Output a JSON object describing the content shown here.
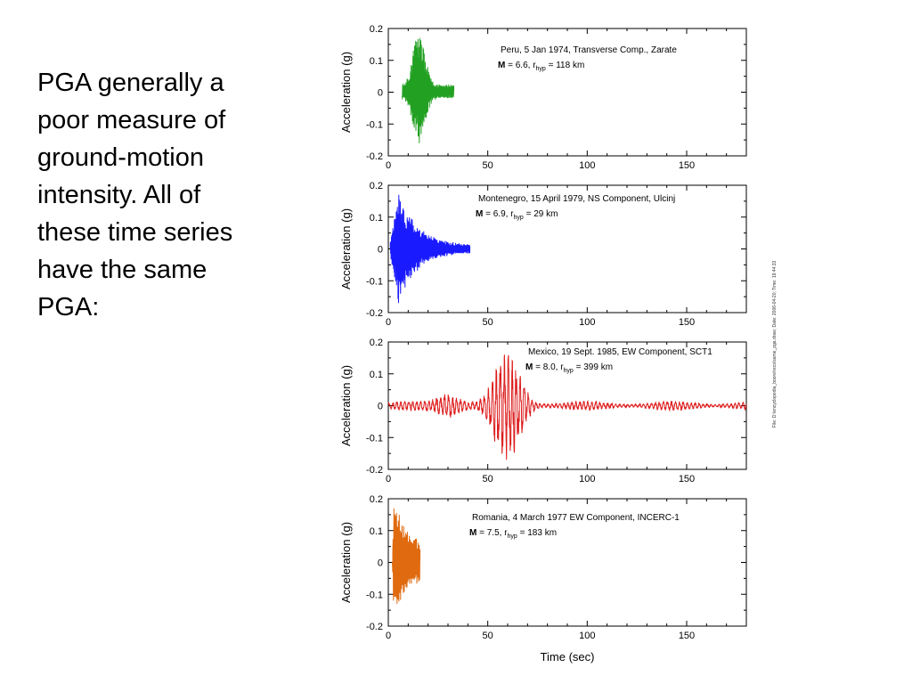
{
  "slide": {
    "lines": [
      "PGA generally a",
      "poor measure of",
      "ground-motion",
      "intensity.  All of",
      "these time series",
      "have the same",
      "PGA:"
    ]
  },
  "side_note": "File: D:\\encyclopedia_boore\\recs\\same_pga.draw; Date: 2006-04-20; Time: 19:44:33",
  "chart_data": [
    {
      "type": "line",
      "series": [
        {
          "name": "Peru",
          "color": "#22a022",
          "shape": "burst",
          "start": 7,
          "end": 33,
          "peak_t": 15.5,
          "max": 0.17,
          "min": -0.16
        }
      ],
      "xlabel": "",
      "ylabel": "Acceleration (g)",
      "xlim": [
        0,
        180
      ],
      "ylim": [
        -0.2,
        0.2
      ],
      "xticks": [
        0,
        50,
        100,
        150
      ],
      "yticks": [
        0.2,
        0.1,
        0,
        -0.1,
        -0.2
      ],
      "ytick_labels": [
        "0.2",
        "0.1",
        "0",
        "-0.1",
        "-0.2"
      ],
      "annotation": {
        "line1": "Peru, 5 Jan 1974, Transverse Comp., Zarate",
        "M_label": "M",
        "m_text": " = 6.6, r",
        "r_sub": "hyp",
        "r_text": "  = 118 km"
      }
    },
    {
      "type": "line",
      "series": [
        {
          "name": "Montenegro",
          "color": "#1a1aff",
          "shape": "decay",
          "start": 1,
          "end": 41,
          "peak_t": 5,
          "max": 0.17,
          "min": -0.17
        }
      ],
      "xlabel": "",
      "ylabel": "Acceleration (g)",
      "xlim": [
        0,
        180
      ],
      "ylim": [
        -0.2,
        0.2
      ],
      "xticks": [
        0,
        50,
        100,
        150
      ],
      "yticks": [
        0.2,
        0.1,
        0,
        -0.1,
        -0.2
      ],
      "ytick_labels": [
        "0.2",
        "0.1",
        "0",
        "-0.1",
        "-0.2"
      ],
      "annotation": {
        "line1": "Montenegro,  15 April 1979, NS Component,  Ulcinj",
        "M_label": "M",
        "m_text": " = 6.9, r",
        "r_sub": "hyp",
        "r_text": "  = 29 km"
      }
    },
    {
      "type": "line",
      "series": [
        {
          "name": "Mexico",
          "color": "#dd1c1c",
          "shape": "long",
          "start": 0,
          "end": 180,
          "peak_t": 60,
          "max": 0.16,
          "min": -0.17
        }
      ],
      "xlabel": "",
      "ylabel": "Acceleration (g)",
      "xlim": [
        0,
        180
      ],
      "ylim": [
        -0.2,
        0.2
      ],
      "xticks": [
        0,
        50,
        100,
        150
      ],
      "yticks": [
        0.2,
        0.1,
        0,
        -0.1,
        -0.2
      ],
      "ytick_labels": [
        "0.2",
        "0.1",
        "0",
        "-0.1",
        "-0.2"
      ],
      "annotation": {
        "line1": "Mexico,  19 Sept. 1985,  EW Component,  SCT1",
        "M_label": "M",
        "m_text": " = 8.0, r",
        "r_sub": "hyp",
        "r_text": "  = 399 km"
      }
    },
    {
      "type": "line",
      "series": [
        {
          "name": "Romania",
          "color": "#e06a10",
          "shape": "short",
          "start": 2,
          "end": 16,
          "peak_t": 3,
          "max": 0.17,
          "min": -0.13
        }
      ],
      "xlabel": "Time  (sec)",
      "ylabel": "Acceleration (g)",
      "xlim": [
        0,
        180
      ],
      "ylim": [
        -0.2,
        0.2
      ],
      "xticks": [
        0,
        50,
        100,
        150
      ],
      "yticks": [
        0.2,
        0.1,
        0,
        -0.1,
        -0.2
      ],
      "ytick_labels": [
        "0.2",
        "0.1",
        "0",
        "-0.1",
        "-0.2"
      ],
      "annotation": {
        "line1": "Romania,  4 March  1977 EW Component,  INCERC-1",
        "M_label": "M",
        "m_text": " = 7.5, r",
        "r_sub": "hyp",
        "r_text": "  = 183 km"
      }
    }
  ]
}
